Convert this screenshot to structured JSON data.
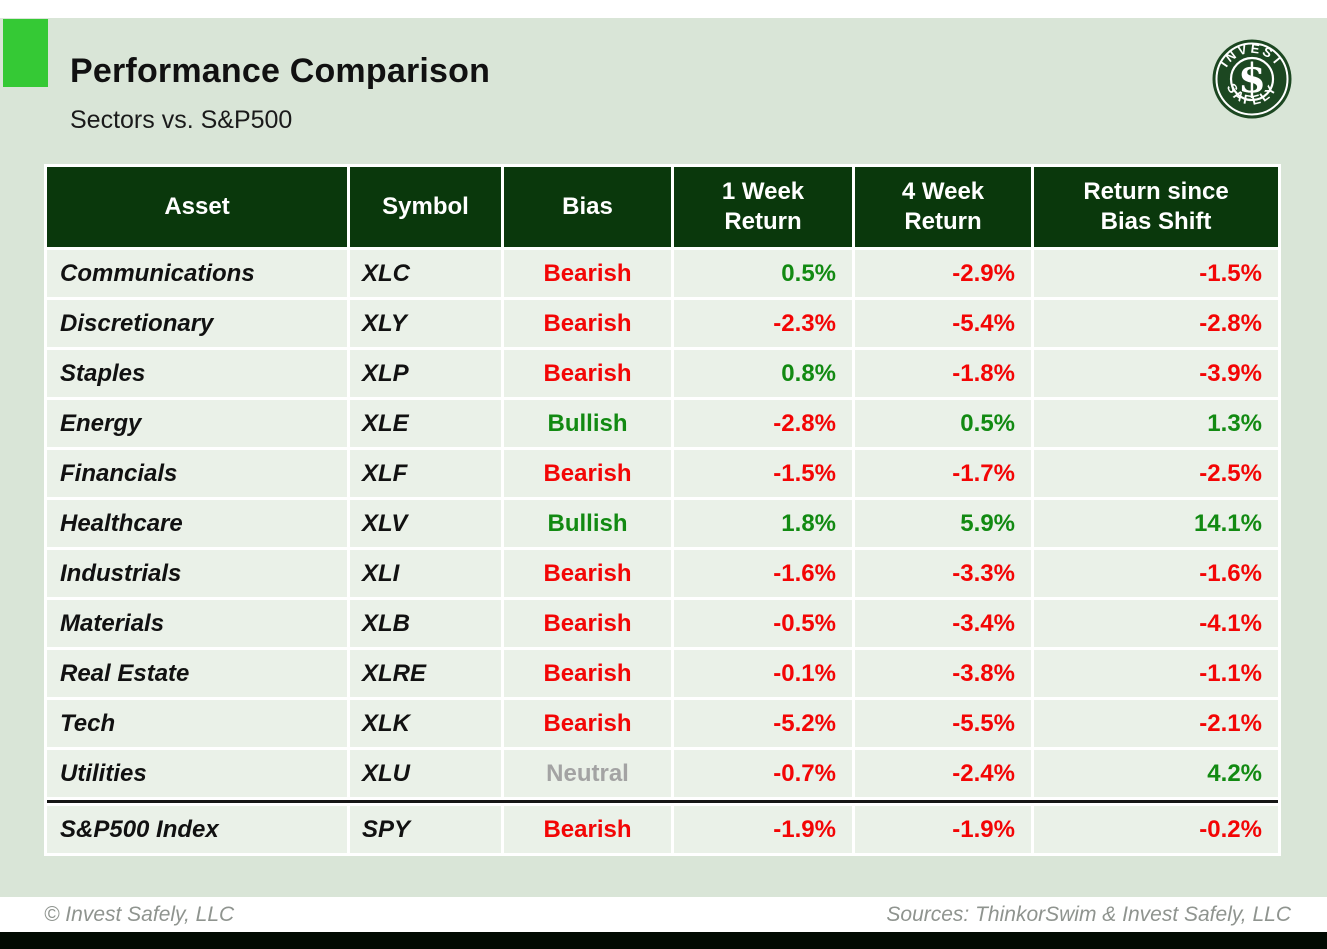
{
  "page": {
    "title": "Performance Comparison",
    "subtitle": "Sectors vs. S&P500"
  },
  "logo": {
    "arc_top": "INVEST",
    "arc_bottom": "SAFELY",
    "monogram": "$"
  },
  "chart_data": {
    "type": "table",
    "title": "Performance Comparison",
    "subtitle": "Sectors vs. S&P500",
    "columns": [
      "Asset",
      "Symbol",
      "Bias",
      "1 Week Return",
      "4 Week Return",
      "Return since Bias Shift"
    ],
    "rows": [
      {
        "asset": "Communications",
        "symbol": "XLC",
        "bias": "Bearish",
        "returns_pct": [
          0.5,
          -2.9,
          -1.5
        ]
      },
      {
        "asset": "Discretionary",
        "symbol": "XLY",
        "bias": "Bearish",
        "returns_pct": [
          -2.3,
          -5.4,
          -2.8
        ]
      },
      {
        "asset": "Staples",
        "symbol": "XLP",
        "bias": "Bearish",
        "returns_pct": [
          0.8,
          -1.8,
          -3.9
        ]
      },
      {
        "asset": "Energy",
        "symbol": "XLE",
        "bias": "Bullish",
        "returns_pct": [
          -2.8,
          0.5,
          1.3
        ]
      },
      {
        "asset": "Financials",
        "symbol": "XLF",
        "bias": "Bearish",
        "returns_pct": [
          -1.5,
          -1.7,
          -2.5
        ]
      },
      {
        "asset": "Healthcare",
        "symbol": "XLV",
        "bias": "Bullish",
        "returns_pct": [
          1.8,
          5.9,
          14.1
        ]
      },
      {
        "asset": "Industrials",
        "symbol": "XLI",
        "bias": "Bearish",
        "returns_pct": [
          -1.6,
          -3.3,
          -1.6
        ]
      },
      {
        "asset": "Materials",
        "symbol": "XLB",
        "bias": "Bearish",
        "returns_pct": [
          -0.5,
          -3.4,
          -4.1
        ]
      },
      {
        "asset": "Real Estate",
        "symbol": "XLRE",
        "bias": "Bearish",
        "returns_pct": [
          -0.1,
          -3.8,
          -1.1
        ]
      },
      {
        "asset": "Tech",
        "symbol": "XLK",
        "bias": "Bearish",
        "returns_pct": [
          -5.2,
          -5.5,
          -2.1
        ]
      },
      {
        "asset": "Utilities",
        "symbol": "XLU",
        "bias": "Neutral",
        "returns_pct": [
          -0.7,
          -2.4,
          4.2
        ]
      },
      {
        "asset": "S&P500 Index",
        "symbol": "SPY",
        "bias": "Bearish",
        "returns_pct": [
          -1.9,
          -1.9,
          -0.2
        ],
        "is_index": true
      }
    ]
  },
  "footer": {
    "left": "© Invest Safely, LLC",
    "right": "Sources: ThinkorSwim & Invest Safely, LLC"
  },
  "theme": {
    "bullish_green": "#128a12",
    "bearish_red": "#f30505",
    "neutral_gray": "#a3a3a3",
    "header_green": "#0a380c",
    "accent_green": "#35c935",
    "logo_green": "#1c4721",
    "background_sage": "#d9e5d7"
  }
}
